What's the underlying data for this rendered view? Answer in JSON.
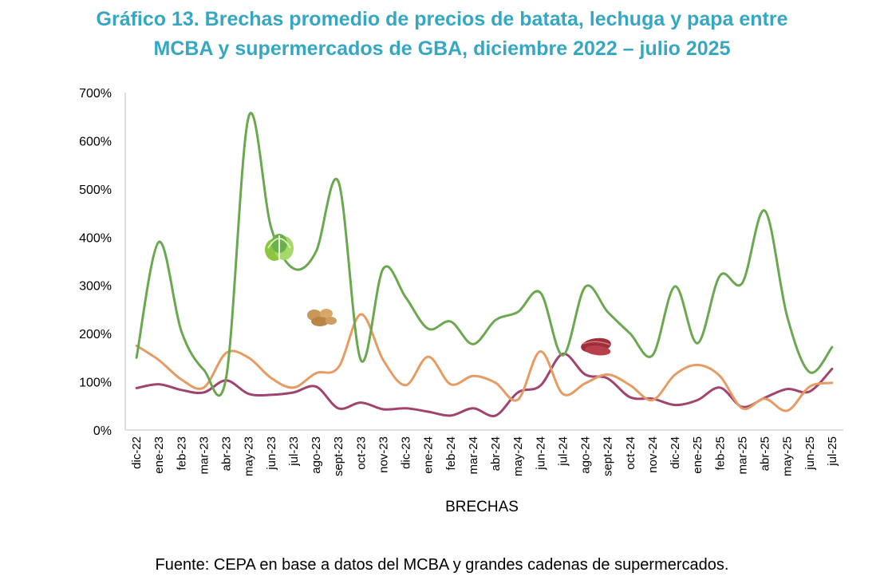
{
  "title_line1": "Gráfico 13. Brechas promedio de precios de batata, lechuga y papa entre",
  "title_line2": "MCBA y supermercados de GBA, diciembre 2022 – julio 2025",
  "source": "Fuente: CEPA en base a datos del MCBA y grandes cadenas de supermercados.",
  "colors": {
    "lechuga": "#6aa84f",
    "papa": "#e59b62",
    "batata": "#a0436e",
    "title": "#35a7c3"
  },
  "icons": [
    "lettuce-icon",
    "potato-icon",
    "sweet-potato-icon"
  ],
  "chart_data": {
    "type": "line",
    "title": "Gráfico 13. Brechas promedio de precios de batata, lechuga y papa entre MCBA y supermercados de GBA, diciembre 2022 – julio 2025",
    "xlabel": "BRECHAS",
    "ylabel": "",
    "ylim": [
      0,
      700
    ],
    "yticks": [
      "0%",
      "100%",
      "200%",
      "300%",
      "400%",
      "500%",
      "600%",
      "700%"
    ],
    "categories": [
      "dic-22",
      "ene-23",
      "feb-23",
      "mar-23",
      "abr-23",
      "may-23",
      "jun-23",
      "jul-23",
      "ago-23",
      "sept-23",
      "oct-23",
      "nov-23",
      "dic-23",
      "ene-24",
      "feb-24",
      "mar-24",
      "abr-24",
      "may-24",
      "jun-24",
      "jul-24",
      "ago-24",
      "sept-24",
      "oct-24",
      "nov-24",
      "dic-24",
      "ene-25",
      "feb-25",
      "mar-25",
      "abr-25",
      "may-25",
      "jun-25",
      "jul-25"
    ],
    "legend": "none",
    "grid": false,
    "series": [
      {
        "key": "lechuga",
        "values": [
          150,
          390,
          205,
          125,
          110,
          650,
          420,
          335,
          370,
          515,
          145,
          335,
          275,
          210,
          225,
          178,
          228,
          245,
          285,
          155,
          297,
          245,
          200,
          155,
          298,
          180,
          320,
          305,
          455,
          235,
          120,
          172
        ]
      },
      {
        "key": "papa",
        "values": [
          175,
          145,
          105,
          88,
          160,
          150,
          108,
          88,
          118,
          130,
          240,
          145,
          93,
          152,
          95,
          112,
          98,
          63,
          163,
          75,
          97,
          115,
          93,
          62,
          115,
          135,
          112,
          45,
          65,
          40,
          90,
          98
        ]
      },
      {
        "key": "batata",
        "values": [
          87,
          95,
          83,
          78,
          103,
          75,
          73,
          78,
          90,
          45,
          57,
          43,
          45,
          38,
          30,
          45,
          30,
          78,
          92,
          158,
          115,
          107,
          68,
          65,
          52,
          62,
          88,
          48,
          67,
          85,
          80,
          127
        ]
      }
    ]
  }
}
